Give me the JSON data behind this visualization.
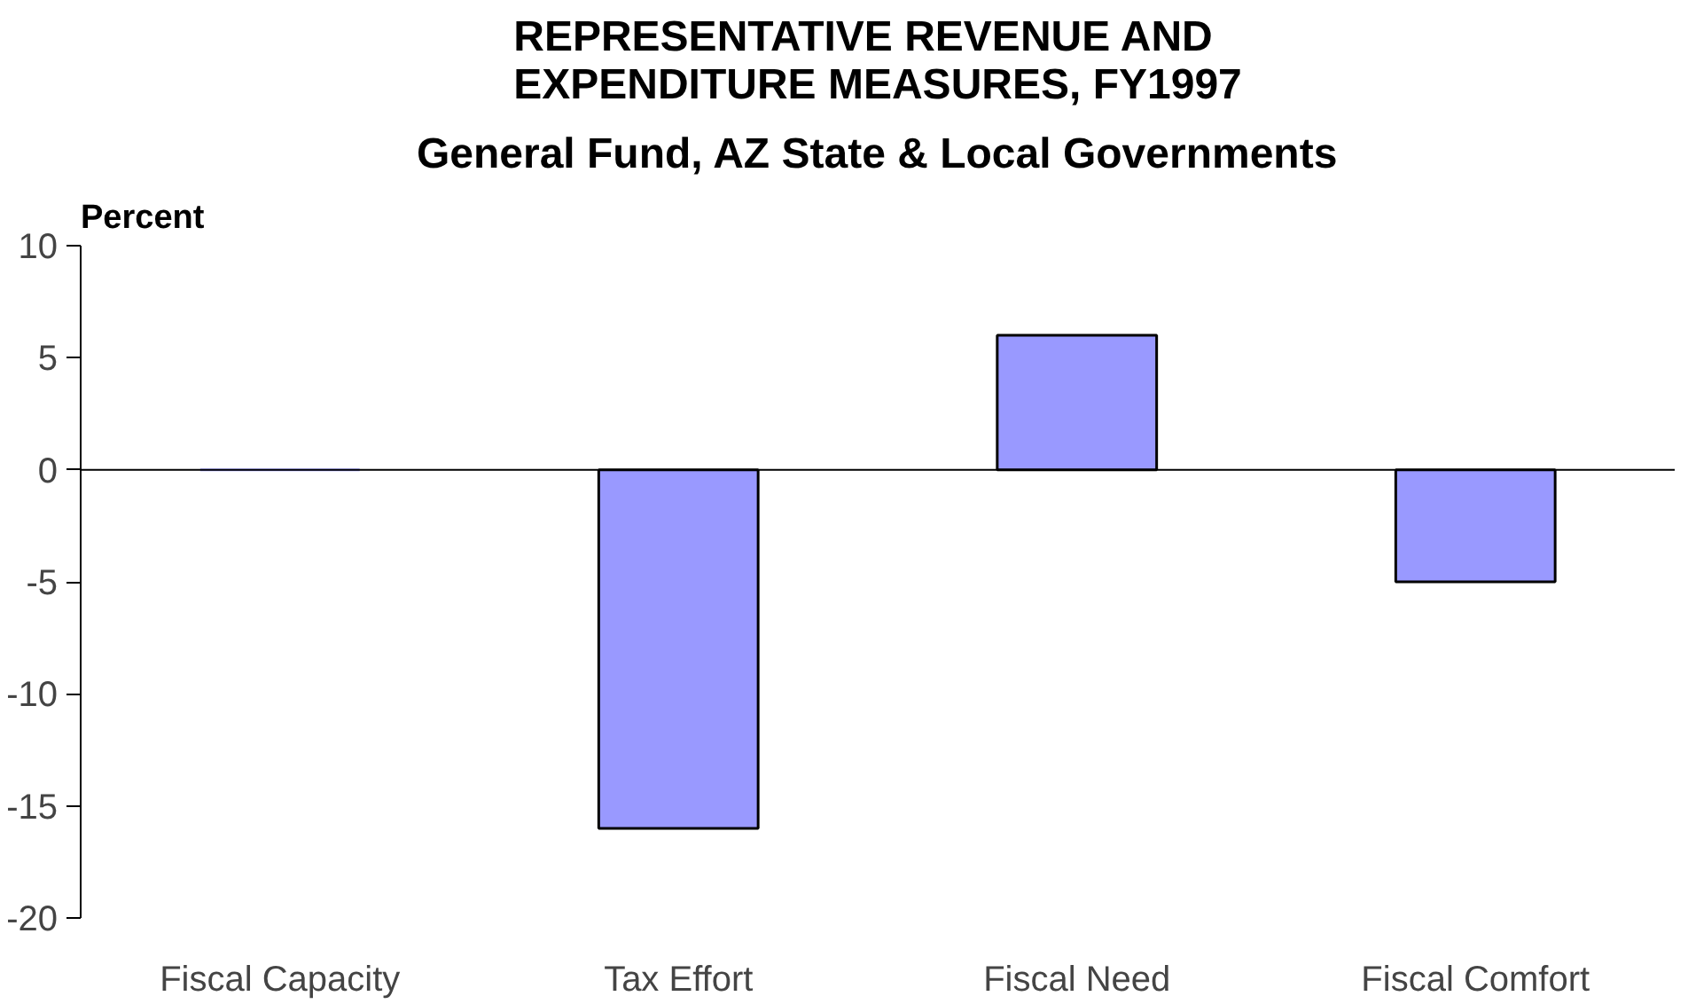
{
  "chart_data": {
    "type": "bar",
    "title": "REPRESENTATIVE REVENUE AND EXPENDITURE MEASURES, FY1997",
    "subtitle": "General Fund, AZ State & Local Governments",
    "ylabel": "Percent",
    "categories": [
      "Fiscal Capacity",
      "Tax Effort",
      "Fiscal Need",
      "Fiscal Comfort"
    ],
    "values": [
      0,
      -16,
      6,
      -5
    ],
    "color": "#9999ff",
    "ylim": [
      -20,
      10
    ],
    "yticks": [
      -20,
      -15,
      -10,
      -5,
      0,
      5,
      10
    ]
  }
}
